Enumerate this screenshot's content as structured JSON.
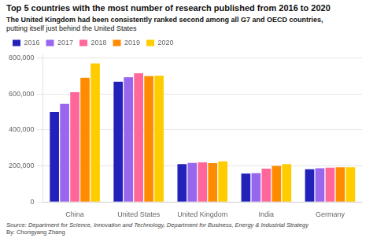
{
  "chart_data": {
    "type": "bar",
    "title": "Top 5 countries with the most number of research published from 2016 to 2020",
    "subtitle": [
      "The United Kingdom had been consistently ranked second among all G7 and OECD countries,",
      "putting itself just behind the United States"
    ],
    "annotations": [
      "Source: Department for Science, Innovation and Technology, Department for Business, Energy & Industrial Strategy",
      "By: Chongyang Zhang"
    ],
    "categories": [
      "China",
      "United States",
      "United Kingdom",
      "India",
      "Germany"
    ],
    "series": [
      {
        "name": "2016",
        "color": "#2222bb",
        "values": [
          500000,
          668000,
          210000,
          158000,
          182000
        ]
      },
      {
        "name": "2017",
        "color": "#9966ee",
        "values": [
          545000,
          693000,
          217000,
          160000,
          187000
        ]
      },
      {
        "name": "2018",
        "color": "#ff6699",
        "values": [
          610000,
          715000,
          220000,
          185000,
          190000
        ]
      },
      {
        "name": "2019",
        "color": "#ff8c00",
        "values": [
          690000,
          700000,
          215000,
          200000,
          192000
        ]
      },
      {
        "name": "2020",
        "color": "#ffcc00",
        "values": [
          770000,
          702000,
          225000,
          210000,
          193000
        ]
      }
    ],
    "ylim": [
      0,
      820000
    ],
    "yticks": [
      0,
      {
        "value": 200000,
        "label": "200,000"
      },
      {
        "value": 400000,
        "label": "400,000"
      },
      {
        "value": 600000,
        "label": "600,000"
      },
      {
        "value": 800000,
        "label": "800,000"
      }
    ],
    "grid": true,
    "legend": "upper left"
  }
}
